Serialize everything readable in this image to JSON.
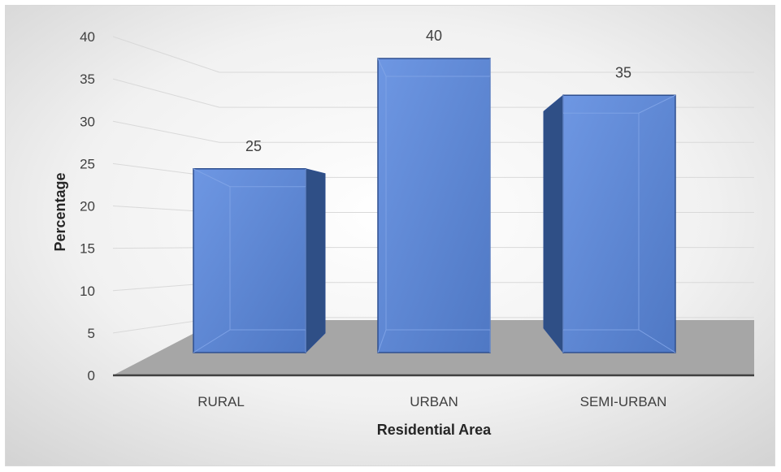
{
  "chart_data": {
    "type": "bar",
    "style": "3d-column",
    "categories": [
      "RURAL",
      "URBAN",
      "SEMI-URBAN"
    ],
    "values": [
      25,
      40,
      35
    ],
    "data_labels": [
      "25",
      "40",
      "35"
    ],
    "title": "",
    "xlabel": "Residential Area",
    "ylabel": "Percentage",
    "ylim": [
      0,
      40
    ],
    "yticks": [
      "0",
      "5",
      "10",
      "15",
      "20",
      "25",
      "30",
      "35",
      "40"
    ],
    "grid": true,
    "legend": "none",
    "colors": {
      "bar_front": "#5b86d6",
      "bar_side": "#2f4f86",
      "bar_edge": "#2e4f8f",
      "floor": "#a6a6a6",
      "gridline": "#d9d9d9",
      "background_center": "#ffffff",
      "background_edge": "#d4d4d4"
    }
  }
}
